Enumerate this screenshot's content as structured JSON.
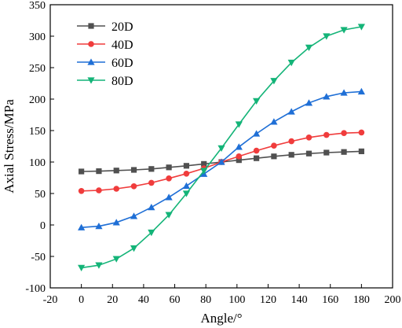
{
  "chart_data": {
    "type": "line",
    "xlabel": "Angle/°",
    "ylabel": "Axial Stress/MPa",
    "xlim": [
      -20,
      200
    ],
    "ylim": [
      -100,
      350
    ],
    "xticks": [
      -20,
      0,
      20,
      40,
      60,
      80,
      100,
      120,
      140,
      160,
      180,
      200
    ],
    "yticks": [
      -100,
      -50,
      0,
      50,
      100,
      150,
      200,
      250,
      300,
      350
    ],
    "grid": false,
    "legend_position": "top-left",
    "x": [
      0,
      11.25,
      22.5,
      33.75,
      45,
      56.25,
      67.5,
      78.75,
      90,
      101.25,
      112.5,
      123.75,
      135,
      146.25,
      157.5,
      168.75,
      180
    ],
    "series": [
      {
        "name": "20D",
        "color": "#505050",
        "marker": "square",
        "values": [
          85,
          85.5,
          86.5,
          87.5,
          89,
          91.5,
          94,
          97,
          100,
          103,
          106,
          109,
          111.5,
          113.5,
          115,
          116,
          117
        ]
      },
      {
        "name": "40D",
        "color": "#f03c3c",
        "marker": "circle",
        "values": [
          54,
          55,
          57.5,
          61.5,
          67,
          74,
          81.5,
          90,
          100,
          109,
          118,
          126,
          133,
          139,
          143,
          146,
          147
        ]
      },
      {
        "name": "60D",
        "color": "#1f6fd6",
        "marker": "triangle-up",
        "values": [
          -4,
          -2,
          4,
          14,
          28,
          44,
          62,
          81,
          100,
          124,
          145,
          164,
          180,
          194,
          204,
          210,
          212
        ]
      },
      {
        "name": "80D",
        "color": "#14b478",
        "marker": "triangle-down",
        "values": [
          -68,
          -64,
          -54,
          -37,
          -12,
          16,
          50,
          86,
          122,
          160,
          197,
          229,
          258,
          282,
          300,
          310,
          315
        ]
      }
    ]
  }
}
